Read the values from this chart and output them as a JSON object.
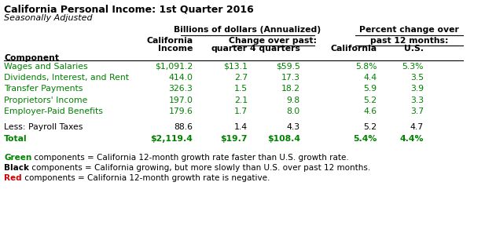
{
  "title": "California Personal Income: 1st Quarter 2016",
  "subtitle": "Seasonally Adjusted",
  "rows": [
    {
      "label": "Wages and Salaries",
      "color": "#008000",
      "bold": false,
      "values": [
        "$1,091.2",
        "$13.1",
        "$59.5",
        "5.8%",
        "5.3%"
      ]
    },
    {
      "label": "Dividends, Interest, and Rent",
      "color": "#008000",
      "bold": false,
      "values": [
        "414.0",
        "2.7",
        "17.3",
        "4.4",
        "3.5"
      ]
    },
    {
      "label": "Transfer Payments",
      "color": "#008000",
      "bold": false,
      "values": [
        "326.3",
        "1.5",
        "18.2",
        "5.9",
        "3.9"
      ]
    },
    {
      "label": "Proprietors' Income",
      "color": "#008000",
      "bold": false,
      "values": [
        "197.0",
        "2.1",
        "9.8",
        "5.2",
        "3.3"
      ]
    },
    {
      "label": "Employer-Paid Benefits",
      "color": "#008000",
      "bold": false,
      "values": [
        "179.6",
        "1.7",
        "8.0",
        "4.6",
        "3.7"
      ]
    }
  ],
  "extra_rows": [
    {
      "label": "Less: Payroll Taxes",
      "color": "#000000",
      "bold": false,
      "values": [
        "88.6",
        "1.4",
        "4.3",
        "5.2",
        "4.7"
      ]
    },
    {
      "label": "Total",
      "color": "#008000",
      "bold": true,
      "values": [
        "$2,119.4",
        "$19.7",
        "$108.4",
        "5.4%",
        "4.4%"
      ]
    }
  ],
  "footnotes": [
    [
      {
        "text": "Green",
        "color": "#008000",
        "bold": true
      },
      {
        "text": " components = California 12-month growth rate faster than U.S. growth rate.",
        "color": "#000000",
        "bold": false
      }
    ],
    [
      {
        "text": "Black",
        "color": "#000000",
        "bold": true
      },
      {
        "text": " components = California growing, but more slowly than U.S. over past 12 months.",
        "color": "#000000",
        "bold": false
      }
    ],
    [
      {
        "text": "Red",
        "color": "#cc0000",
        "bold": true
      },
      {
        "text": " components = California 12-month growth rate is negative.",
        "color": "#000000",
        "bold": false
      }
    ]
  ],
  "bg_color": "#ffffff",
  "fs": 7.8,
  "fs_title": 9.0,
  "fs_subtitle": 8.0,
  "fs_footnote": 7.5
}
